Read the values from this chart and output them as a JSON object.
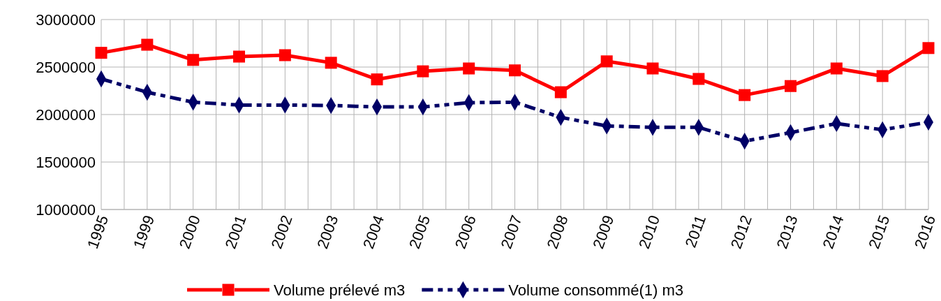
{
  "chart_data": {
    "type": "line",
    "categories": [
      "1995",
      "1999",
      "2000",
      "2001",
      "2002",
      "2003",
      "2004",
      "2005",
      "2006",
      "2007",
      "2008",
      "2009",
      "2010",
      "2011",
      "2012",
      "2013",
      "2014",
      "2015",
      "2016"
    ],
    "series": [
      {
        "name": "Volume prélevé m3",
        "color": "#ff0000",
        "marker": "square",
        "line_style": "solid",
        "values": [
          2650000,
          2735000,
          2575000,
          2610000,
          2625000,
          2545000,
          2370000,
          2455000,
          2485000,
          2465000,
          2235000,
          2560000,
          2485000,
          2375000,
          2205000,
          2300000,
          2485000,
          2405000,
          2700000
        ]
      },
      {
        "name": "Volume consommé(1) m3",
        "color": "#000066",
        "marker": "diamond",
        "line_style": "dashed",
        "values": [
          2375000,
          2235000,
          2130000,
          2100000,
          2100000,
          2095000,
          2080000,
          2080000,
          2125000,
          2130000,
          1970000,
          1880000,
          1865000,
          1865000,
          1720000,
          1810000,
          1905000,
          1840000,
          1920000
        ]
      }
    ],
    "ylim": [
      1000000,
      3000000
    ],
    "yticks": [
      1000000,
      1500000,
      2000000,
      2500000,
      3000000
    ],
    "grid": true,
    "legend": "bottom"
  }
}
